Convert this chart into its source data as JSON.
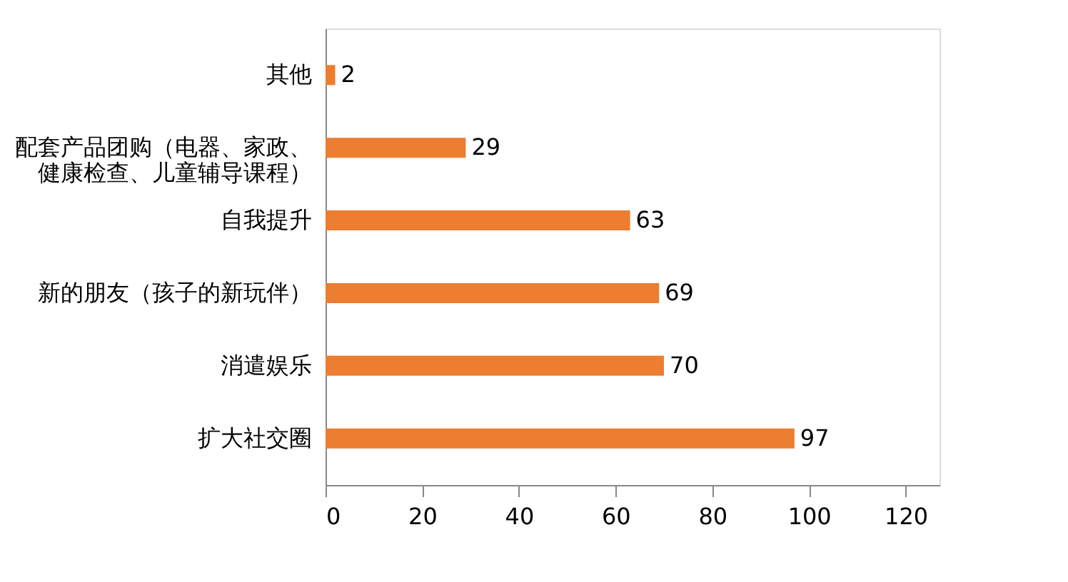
{
  "chart_data": {
    "type": "bar",
    "orientation": "horizontal",
    "categories": [
      "其他",
      "配套产品团购（电器、家政、健康检查、儿童辅导课程）",
      "自我提升",
      "新的朋友（孩子的新玩伴）",
      "消遣娱乐",
      "扩大社交圈"
    ],
    "values": [
      2,
      29,
      63,
      69,
      70,
      97
    ],
    "color": "#ed7d31",
    "xlim": [
      0,
      127
    ],
    "xticks": [
      0,
      20,
      40,
      60,
      80,
      100,
      120
    ],
    "data_labels": true,
    "grid": false
  }
}
